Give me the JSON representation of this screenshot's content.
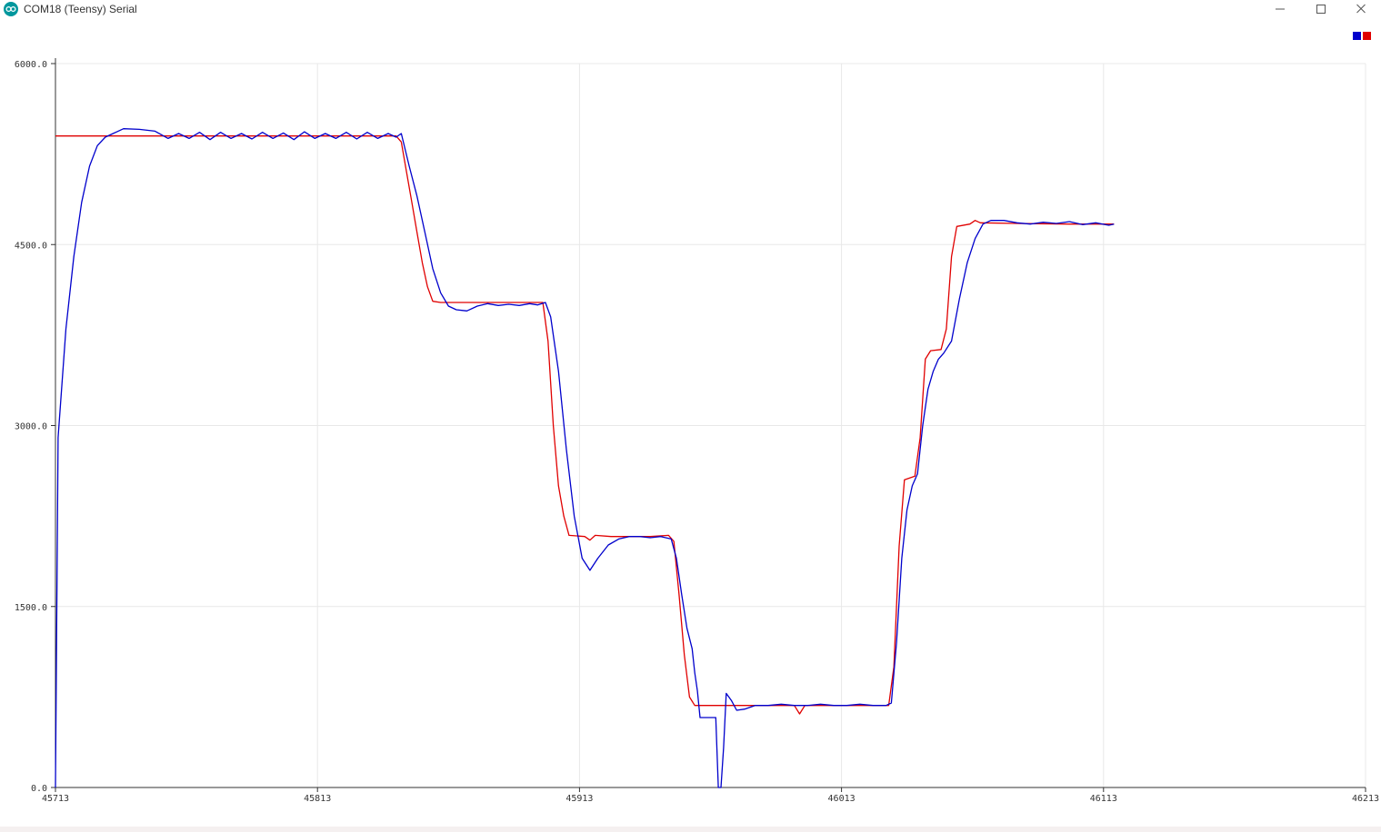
{
  "window": {
    "title": "COM18 (Teensy) Serial",
    "icon": "arduino-infinity-icon",
    "controls": [
      "minimize-icon",
      "maximize-icon",
      "close-icon"
    ]
  },
  "chart_data": {
    "type": "line",
    "title": "",
    "xlabel": "",
    "ylabel": "",
    "xlim": [
      45713,
      46213
    ],
    "ylim": [
      0,
      6000
    ],
    "x_ticks": [
      "45713",
      "45813",
      "45913",
      "46013",
      "46113",
      "46213"
    ],
    "y_ticks": [
      "0.0",
      "1500.0",
      "3000.0",
      "4500.0",
      "6000.0"
    ],
    "grid": true,
    "legend": "top-right",
    "series": [
      {
        "color": "#0000cc",
        "points": [
          [
            45713,
            0
          ],
          [
            45714,
            2900
          ],
          [
            45717,
            3800
          ],
          [
            45720,
            4400
          ],
          [
            45723,
            4850
          ],
          [
            45726,
            5150
          ],
          [
            45729,
            5320
          ],
          [
            45732,
            5390
          ],
          [
            45735,
            5420
          ],
          [
            45739,
            5460
          ],
          [
            45745,
            5455
          ],
          [
            45751,
            5440
          ],
          [
            45756,
            5380
          ],
          [
            45760,
            5420
          ],
          [
            45764,
            5380
          ],
          [
            45768,
            5430
          ],
          [
            45772,
            5370
          ],
          [
            45776,
            5430
          ],
          [
            45780,
            5380
          ],
          [
            45784,
            5420
          ],
          [
            45788,
            5375
          ],
          [
            45792,
            5430
          ],
          [
            45796,
            5380
          ],
          [
            45800,
            5425
          ],
          [
            45804,
            5370
          ],
          [
            45808,
            5435
          ],
          [
            45812,
            5380
          ],
          [
            45816,
            5420
          ],
          [
            45820,
            5380
          ],
          [
            45824,
            5430
          ],
          [
            45828,
            5375
          ],
          [
            45832,
            5430
          ],
          [
            45836,
            5380
          ],
          [
            45840,
            5420
          ],
          [
            45843,
            5390
          ],
          [
            45845,
            5420
          ],
          [
            45848,
            5150
          ],
          [
            45851,
            4900
          ],
          [
            45854,
            4600
          ],
          [
            45857,
            4300
          ],
          [
            45860,
            4100
          ],
          [
            45863,
            3990
          ],
          [
            45866,
            3960
          ],
          [
            45870,
            3950
          ],
          [
            45874,
            3990
          ],
          [
            45878,
            4010
          ],
          [
            45882,
            3995
          ],
          [
            45886,
            4005
          ],
          [
            45890,
            3995
          ],
          [
            45894,
            4010
          ],
          [
            45897,
            4000
          ],
          [
            45900,
            4020
          ],
          [
            45902,
            3900
          ],
          [
            45905,
            3450
          ],
          [
            45908,
            2800
          ],
          [
            45911,
            2250
          ],
          [
            45914,
            1900
          ],
          [
            45917,
            1800
          ],
          [
            45920,
            1900
          ],
          [
            45924,
            2010
          ],
          [
            45928,
            2060
          ],
          [
            45932,
            2080
          ],
          [
            45936,
            2080
          ],
          [
            45940,
            2070
          ],
          [
            45944,
            2080
          ],
          [
            45948,
            2060
          ],
          [
            45950,
            1900
          ],
          [
            45952,
            1600
          ],
          [
            45954,
            1320
          ],
          [
            45956,
            1150
          ],
          [
            45957,
            950
          ],
          [
            45958,
            800
          ],
          [
            45959,
            580
          ],
          [
            45962,
            580
          ],
          [
            45965,
            580
          ],
          [
            45966,
            0
          ],
          [
            45967,
            0
          ],
          [
            45968,
            330
          ],
          [
            45969,
            780
          ],
          [
            45971,
            720
          ],
          [
            45973,
            640
          ],
          [
            45976,
            650
          ],
          [
            45980,
            680
          ],
          [
            45985,
            680
          ],
          [
            45990,
            690
          ],
          [
            45995,
            680
          ],
          [
            46000,
            680
          ],
          [
            46005,
            690
          ],
          [
            46010,
            680
          ],
          [
            46015,
            680
          ],
          [
            46020,
            690
          ],
          [
            46025,
            680
          ],
          [
            46030,
            680
          ],
          [
            46032,
            700
          ],
          [
            46034,
            1200
          ],
          [
            46036,
            1900
          ],
          [
            46038,
            2300
          ],
          [
            46040,
            2500
          ],
          [
            46042,
            2600
          ],
          [
            46044,
            3000
          ],
          [
            46046,
            3300
          ],
          [
            46048,
            3450
          ],
          [
            46050,
            3550
          ],
          [
            46052,
            3600
          ],
          [
            46055,
            3700
          ],
          [
            46058,
            4050
          ],
          [
            46061,
            4350
          ],
          [
            46064,
            4550
          ],
          [
            46067,
            4670
          ],
          [
            46070,
            4700
          ],
          [
            46075,
            4700
          ],
          [
            46080,
            4680
          ],
          [
            46085,
            4670
          ],
          [
            46090,
            4685
          ],
          [
            46095,
            4675
          ],
          [
            46100,
            4690
          ],
          [
            46105,
            4665
          ],
          [
            46110,
            4680
          ],
          [
            46115,
            4660
          ],
          [
            46117,
            4670
          ]
        ]
      },
      {
        "color": "#e00000",
        "points": [
          [
            45713,
            5400
          ],
          [
            45730,
            5400
          ],
          [
            45760,
            5400
          ],
          [
            45790,
            5400
          ],
          [
            45820,
            5400
          ],
          [
            45843,
            5400
          ],
          [
            45845,
            5350
          ],
          [
            45847,
            5100
          ],
          [
            45849,
            4850
          ],
          [
            45851,
            4600
          ],
          [
            45853,
            4350
          ],
          [
            45855,
            4150
          ],
          [
            45857,
            4030
          ],
          [
            45860,
            4020
          ],
          [
            45870,
            4020
          ],
          [
            45880,
            4020
          ],
          [
            45890,
            4020
          ],
          [
            45899,
            4020
          ],
          [
            45901,
            3700
          ],
          [
            45903,
            3000
          ],
          [
            45905,
            2500
          ],
          [
            45907,
            2250
          ],
          [
            45909,
            2090
          ],
          [
            45915,
            2080
          ],
          [
            45917,
            2050
          ],
          [
            45919,
            2090
          ],
          [
            45925,
            2080
          ],
          [
            45940,
            2080
          ],
          [
            45947,
            2090
          ],
          [
            45949,
            2040
          ],
          [
            45951,
            1600
          ],
          [
            45953,
            1100
          ],
          [
            45955,
            750
          ],
          [
            45957,
            680
          ],
          [
            45965,
            680
          ],
          [
            45980,
            680
          ],
          [
            45995,
            680
          ],
          [
            45997,
            610
          ],
          [
            45999,
            680
          ],
          [
            46010,
            680
          ],
          [
            46025,
            680
          ],
          [
            46031,
            680
          ],
          [
            46033,
            1000
          ],
          [
            46035,
            2000
          ],
          [
            46037,
            2550
          ],
          [
            46041,
            2580
          ],
          [
            46043,
            2900
          ],
          [
            46045,
            3550
          ],
          [
            46047,
            3620
          ],
          [
            46051,
            3630
          ],
          [
            46053,
            3800
          ],
          [
            46055,
            4400
          ],
          [
            46057,
            4650
          ],
          [
            46062,
            4670
          ],
          [
            46064,
            4700
          ],
          [
            46066,
            4680
          ],
          [
            46080,
            4675
          ],
          [
            46100,
            4670
          ],
          [
            46117,
            4670
          ]
        ]
      }
    ]
  }
}
